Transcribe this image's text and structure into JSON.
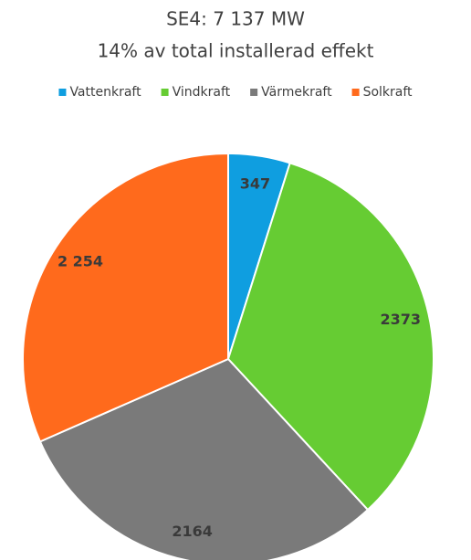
{
  "chart_data": {
    "type": "pie",
    "title": "SE4: 7 137 MW",
    "subtitle": "14% av total installerad effekt",
    "categories": [
      "Vattenkraft",
      "Vindkraft",
      "Värmekraft",
      "Solkraft"
    ],
    "values": [
      347,
      2373,
      2164,
      2254
    ],
    "value_labels": [
      "347",
      "2373",
      "2164",
      "2 254"
    ],
    "colors": [
      "#0f9ee0",
      "#66cc33",
      "#7a7a7a",
      "#ff6a1c"
    ],
    "legend": "top"
  }
}
